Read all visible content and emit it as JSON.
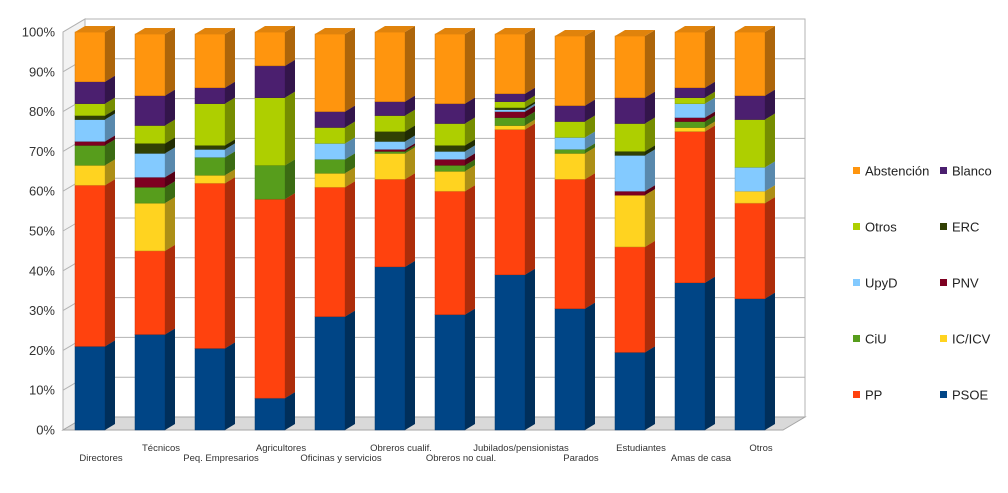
{
  "chart_data": {
    "type": "bar",
    "stacked": true,
    "percent": true,
    "title": "",
    "xlabel": "",
    "ylabel": "",
    "ylim": [
      0,
      100
    ],
    "yticks": [
      "0%",
      "10%",
      "20%",
      "30%",
      "40%",
      "50%",
      "60%",
      "70%",
      "80%",
      "90%",
      "100%"
    ],
    "categories": [
      "Directores",
      "Técnicos",
      "Peq. Empresarios",
      "Agricultores",
      "Oficinas y servicios",
      "Obreros cualif.",
      "Obreros no cual.",
      "Jubilados/pensionistas",
      "Parados",
      "Estudiantes",
      "Amas de casa",
      "Otros"
    ],
    "series": [
      {
        "name": "PSOE",
        "color": "#004586",
        "values": [
          21,
          24,
          20.5,
          8,
          28.5,
          41,
          29,
          39,
          30.5,
          19.5,
          37,
          33
        ]
      },
      {
        "name": "PP",
        "color": "#FF420E",
        "values": [
          40.5,
          21,
          41.5,
          50,
          32.5,
          22,
          31,
          36.5,
          32.5,
          26.5,
          38,
          24
        ]
      },
      {
        "name": "IC/ICV",
        "color": "#FFD320",
        "values": [
          5,
          12,
          2,
          0,
          3.5,
          6.5,
          5,
          1,
          6.5,
          13,
          1,
          3
        ]
      },
      {
        "name": "CiU",
        "color": "#579D1C",
        "values": [
          5,
          4,
          4.5,
          8.5,
          3.5,
          0.5,
          1.5,
          2,
          1,
          0,
          1.5,
          0
        ]
      },
      {
        "name": "PNV",
        "color": "#7E0021",
        "values": [
          1,
          2.5,
          0,
          0,
          0,
          0.5,
          1.5,
          1.5,
          0,
          1,
          1,
          0
        ]
      },
      {
        "name": "UpyD",
        "color": "#83CAFF",
        "values": [
          5.5,
          6,
          2,
          0,
          4,
          2,
          2,
          0.5,
          3,
          9,
          3.5,
          6
        ]
      },
      {
        "name": "ERC",
        "color": "#314004",
        "values": [
          1,
          2.5,
          1,
          0,
          0,
          2.5,
          1.5,
          0.5,
          0,
          1,
          0,
          0
        ]
      },
      {
        "name": "Otros",
        "color": "#AECF00",
        "values": [
          3,
          4.5,
          10.5,
          17,
          4,
          4,
          5.5,
          1.5,
          4,
          7,
          1.5,
          12
        ]
      },
      {
        "name": "Blanco",
        "color": "#4B1F6F",
        "values": [
          5.5,
          7.5,
          4,
          8,
          4,
          3.5,
          5,
          2,
          4,
          6.5,
          2.5,
          6
        ]
      },
      {
        "name": "Abstención",
        "color": "#FF950E",
        "values": [
          12.5,
          15.5,
          13.5,
          8.5,
          19.5,
          17.5,
          17.5,
          15,
          17.5,
          15.5,
          14,
          16
        ]
      }
    ],
    "legend_position": "right",
    "legend_order": [
      "Abstención",
      "Blanco",
      "Otros",
      "ERC",
      "UpyD",
      "PNV",
      "CiU",
      "IC/ICV",
      "PP",
      "PSOE"
    ],
    "grid": true
  }
}
